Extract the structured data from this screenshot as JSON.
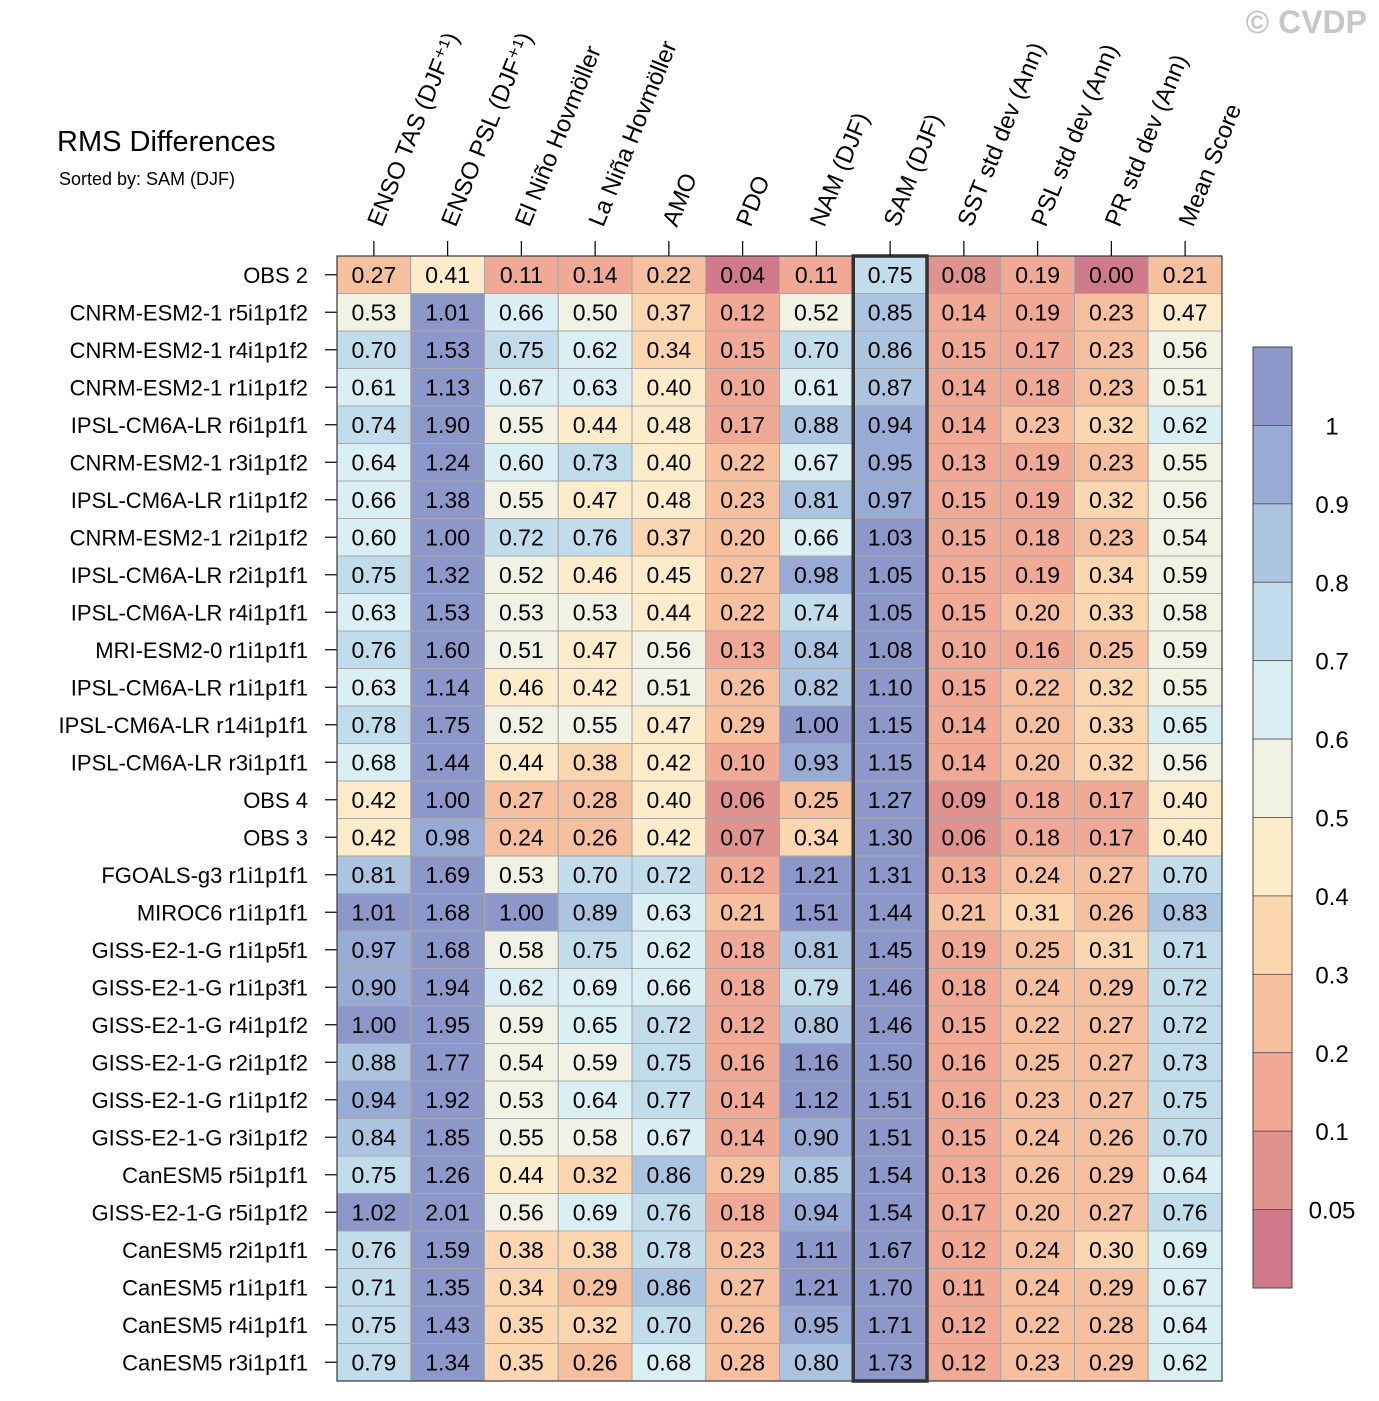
{
  "watermark": "© CVDP",
  "chart_data": {
    "type": "heatmap",
    "title": "RMS Differences",
    "subtitle": "Sorted by: SAM (DJF)",
    "sorted_by": "SAM (DJF)",
    "highlighted_column": "SAM (DJF)",
    "columns": [
      "ENSO TAS (DJF⁺¹)",
      "ENSO PSL (DJF⁺¹)",
      "El Niño Hovmöller",
      "La Niña Hovmöller",
      "AMO",
      "PDO",
      "NAM (DJF)",
      "SAM (DJF)",
      "SST std dev (Ann)",
      "PSL std dev (Ann)",
      "PR std dev (Ann)",
      "Mean Score"
    ],
    "rows": [
      {
        "name": "OBS 2",
        "values": [
          0.27,
          0.41,
          0.11,
          0.14,
          0.22,
          0.04,
          0.11,
          0.75,
          0.08,
          0.19,
          0.0,
          0.21
        ]
      },
      {
        "name": "CNRM-ESM2-1 r5i1p1f2",
        "values": [
          0.53,
          1.01,
          0.66,
          0.5,
          0.37,
          0.12,
          0.52,
          0.85,
          0.14,
          0.19,
          0.23,
          0.47
        ]
      },
      {
        "name": "CNRM-ESM2-1 r4i1p1f2",
        "values": [
          0.7,
          1.53,
          0.75,
          0.62,
          0.34,
          0.15,
          0.7,
          0.86,
          0.15,
          0.17,
          0.23,
          0.56
        ]
      },
      {
        "name": "CNRM-ESM2-1 r1i1p1f2",
        "values": [
          0.61,
          1.13,
          0.67,
          0.63,
          0.4,
          0.1,
          0.61,
          0.87,
          0.14,
          0.18,
          0.23,
          0.51
        ]
      },
      {
        "name": "IPSL-CM6A-LR r6i1p1f1",
        "values": [
          0.74,
          1.9,
          0.55,
          0.44,
          0.48,
          0.17,
          0.88,
          0.94,
          0.14,
          0.23,
          0.32,
          0.62
        ]
      },
      {
        "name": "CNRM-ESM2-1 r3i1p1f2",
        "values": [
          0.64,
          1.24,
          0.6,
          0.73,
          0.4,
          0.22,
          0.67,
          0.95,
          0.13,
          0.19,
          0.23,
          0.55
        ]
      },
      {
        "name": "IPSL-CM6A-LR r1i1p1f2",
        "values": [
          0.66,
          1.38,
          0.55,
          0.47,
          0.48,
          0.23,
          0.81,
          0.97,
          0.15,
          0.19,
          0.32,
          0.56
        ]
      },
      {
        "name": "CNRM-ESM2-1 r2i1p1f2",
        "values": [
          0.6,
          1.0,
          0.72,
          0.76,
          0.37,
          0.2,
          0.66,
          1.03,
          0.15,
          0.18,
          0.23,
          0.54
        ]
      },
      {
        "name": "IPSL-CM6A-LR r2i1p1f1",
        "values": [
          0.75,
          1.32,
          0.52,
          0.46,
          0.45,
          0.27,
          0.98,
          1.05,
          0.15,
          0.19,
          0.34,
          0.59
        ]
      },
      {
        "name": "IPSL-CM6A-LR r4i1p1f1",
        "values": [
          0.63,
          1.53,
          0.53,
          0.53,
          0.44,
          0.22,
          0.74,
          1.05,
          0.15,
          0.2,
          0.33,
          0.58
        ]
      },
      {
        "name": "MRI-ESM2-0 r1i1p1f1",
        "values": [
          0.76,
          1.6,
          0.51,
          0.47,
          0.56,
          0.13,
          0.84,
          1.08,
          0.1,
          0.16,
          0.25,
          0.59
        ]
      },
      {
        "name": "IPSL-CM6A-LR r1i1p1f1",
        "values": [
          0.63,
          1.14,
          0.46,
          0.42,
          0.51,
          0.26,
          0.82,
          1.1,
          0.15,
          0.22,
          0.32,
          0.55
        ]
      },
      {
        "name": "IPSL-CM6A-LR r14i1p1f1",
        "values": [
          0.78,
          1.75,
          0.52,
          0.55,
          0.47,
          0.29,
          1.0,
          1.15,
          0.14,
          0.2,
          0.33,
          0.65
        ]
      },
      {
        "name": "IPSL-CM6A-LR r3i1p1f1",
        "values": [
          0.68,
          1.44,
          0.44,
          0.38,
          0.42,
          0.1,
          0.93,
          1.15,
          0.14,
          0.2,
          0.32,
          0.56
        ]
      },
      {
        "name": "OBS 4",
        "values": [
          0.42,
          1.0,
          0.27,
          0.28,
          0.4,
          0.06,
          0.25,
          1.27,
          0.09,
          0.18,
          0.17,
          0.4
        ]
      },
      {
        "name": "OBS 3",
        "values": [
          0.42,
          0.98,
          0.24,
          0.26,
          0.42,
          0.07,
          0.34,
          1.3,
          0.06,
          0.18,
          0.17,
          0.4
        ]
      },
      {
        "name": "FGOALS-g3 r1i1p1f1",
        "values": [
          0.81,
          1.69,
          0.53,
          0.7,
          0.72,
          0.12,
          1.21,
          1.31,
          0.13,
          0.24,
          0.27,
          0.7
        ]
      },
      {
        "name": "MIROC6 r1i1p1f1",
        "values": [
          1.01,
          1.68,
          1.0,
          0.89,
          0.63,
          0.21,
          1.51,
          1.44,
          0.21,
          0.31,
          0.26,
          0.83
        ]
      },
      {
        "name": "GISS-E2-1-G r1i1p5f1",
        "values": [
          0.97,
          1.68,
          0.58,
          0.75,
          0.62,
          0.18,
          0.81,
          1.45,
          0.19,
          0.25,
          0.31,
          0.71
        ]
      },
      {
        "name": "GISS-E2-1-G r1i1p3f1",
        "values": [
          0.9,
          1.94,
          0.62,
          0.69,
          0.66,
          0.18,
          0.79,
          1.46,
          0.18,
          0.24,
          0.29,
          0.72
        ]
      },
      {
        "name": "GISS-E2-1-G r4i1p1f2",
        "values": [
          1.0,
          1.95,
          0.59,
          0.65,
          0.72,
          0.12,
          0.8,
          1.46,
          0.15,
          0.22,
          0.27,
          0.72
        ]
      },
      {
        "name": "GISS-E2-1-G r2i1p1f2",
        "values": [
          0.88,
          1.77,
          0.54,
          0.59,
          0.75,
          0.16,
          1.16,
          1.5,
          0.16,
          0.25,
          0.27,
          0.73
        ]
      },
      {
        "name": "GISS-E2-1-G r1i1p1f2",
        "values": [
          0.94,
          1.92,
          0.53,
          0.64,
          0.77,
          0.14,
          1.12,
          1.51,
          0.16,
          0.23,
          0.27,
          0.75
        ]
      },
      {
        "name": "GISS-E2-1-G r3i1p1f2",
        "values": [
          0.84,
          1.85,
          0.55,
          0.58,
          0.67,
          0.14,
          0.9,
          1.51,
          0.15,
          0.24,
          0.26,
          0.7
        ]
      },
      {
        "name": "CanESM5 r5i1p1f1",
        "values": [
          0.75,
          1.26,
          0.44,
          0.32,
          0.86,
          0.29,
          0.85,
          1.54,
          0.13,
          0.26,
          0.29,
          0.64
        ]
      },
      {
        "name": "GISS-E2-1-G r5i1p1f2",
        "values": [
          1.02,
          2.01,
          0.56,
          0.69,
          0.76,
          0.18,
          0.94,
          1.54,
          0.17,
          0.2,
          0.27,
          0.76
        ]
      },
      {
        "name": "CanESM5 r2i1p1f1",
        "values": [
          0.76,
          1.59,
          0.38,
          0.38,
          0.78,
          0.23,
          1.11,
          1.67,
          0.12,
          0.24,
          0.3,
          0.69
        ]
      },
      {
        "name": "CanESM5 r1i1p1f1",
        "values": [
          0.71,
          1.35,
          0.34,
          0.29,
          0.86,
          0.27,
          1.21,
          1.7,
          0.11,
          0.24,
          0.29,
          0.67
        ]
      },
      {
        "name": "CanESM5 r4i1p1f1",
        "values": [
          0.75,
          1.43,
          0.35,
          0.32,
          0.7,
          0.26,
          0.95,
          1.71,
          0.12,
          0.22,
          0.28,
          0.64
        ]
      },
      {
        "name": "CanESM5 r3i1p1f1",
        "values": [
          0.79,
          1.34,
          0.35,
          0.26,
          0.68,
          0.28,
          0.8,
          1.73,
          0.12,
          0.23,
          0.29,
          0.62
        ]
      }
    ],
    "colorbar": {
      "levels": [
        0.05,
        0.1,
        0.2,
        0.3,
        0.4,
        0.5,
        0.6,
        0.7,
        0.8,
        0.9,
        1
      ],
      "labels": [
        "0.05",
        "0.1",
        "0.2",
        "0.3",
        "0.4",
        "0.5",
        "0.6",
        "0.7",
        "0.8",
        "0.9",
        "1"
      ],
      "colors": [
        "#d07a8b",
        "#e0928f",
        "#efa994",
        "#f6bf9d",
        "#fbd6ae",
        "#fcecc9",
        "#f2f2e4",
        "#d9eff3",
        "#c1dceb",
        "#abc4e0",
        "#97abd4",
        "#8c98c9"
      ]
    }
  }
}
